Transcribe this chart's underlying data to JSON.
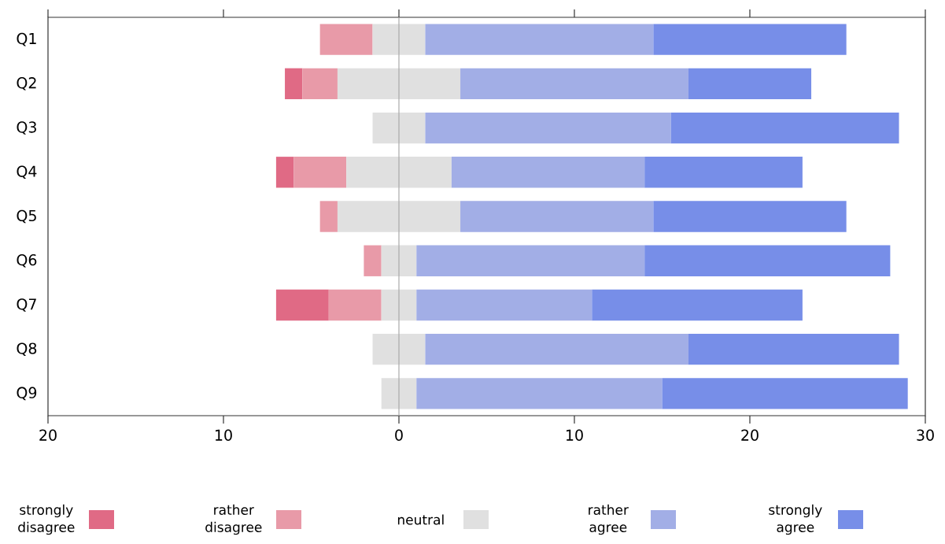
{
  "chart_data": {
    "type": "bar",
    "orientation": "horizontal",
    "categories": [
      "Q1",
      "Q2",
      "Q3",
      "Q4",
      "Q5",
      "Q6",
      "Q7",
      "Q8",
      "Q9"
    ],
    "series": [
      {
        "name": "strongly disagree",
        "color": "#e06a85",
        "values": [
          null,
          1,
          null,
          1,
          null,
          null,
          3,
          null,
          null
        ],
        "base": [
          null,
          -6.5,
          null,
          -7,
          null,
          null,
          -7,
          null,
          null
        ]
      },
      {
        "name": "rather disagree",
        "color": "#e89aa8",
        "values": [
          3,
          2,
          null,
          3,
          1,
          1,
          3,
          null,
          null
        ],
        "base": [
          -4.5,
          -5.5,
          null,
          -6,
          -4.5,
          -2,
          -4,
          null,
          null
        ]
      },
      {
        "name": "neutral",
        "color": "#e0e0e0",
        "values": [
          3,
          7,
          3,
          6,
          7,
          2,
          2,
          3,
          2
        ],
        "base": [
          -1.5,
          -3.5,
          -1.5,
          -3,
          -3.5,
          -1,
          -1,
          -1.5,
          -1
        ]
      },
      {
        "name": "rather agree",
        "color": "#a2aee6",
        "values": [
          13,
          13,
          14,
          11,
          11,
          13,
          10,
          15,
          14
        ],
        "base": [
          1.5,
          3.5,
          1.5,
          3,
          3.5,
          1,
          1,
          1.5,
          1
        ]
      },
      {
        "name": "strongly agree",
        "color": "#778ee8",
        "values": [
          11,
          7,
          13,
          9,
          11,
          14,
          12,
          12,
          14
        ],
        "base": [
          14.5,
          16.5,
          15.5,
          14,
          14.5,
          14,
          11,
          16.5,
          15
        ]
      }
    ],
    "xlim": [
      -20,
      30
    ],
    "xticks": [
      {
        "value": -20,
        "label": "20"
      },
      {
        "value": -10,
        "label": "10"
      },
      0,
      10,
      20,
      30
    ],
    "ref_lines": [
      {
        "axis": "x",
        "value": 0,
        "color": "#aaaaaa"
      }
    ],
    "legend": "bottom"
  }
}
